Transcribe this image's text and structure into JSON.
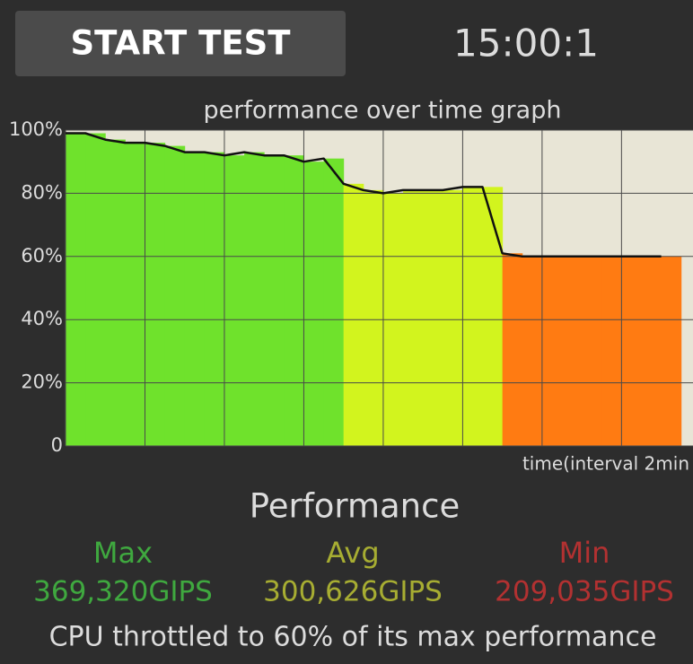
{
  "header": {
    "button": "START TEST",
    "timer": "15:00:1"
  },
  "chart_data": {
    "type": "line",
    "title": "performance over time graph",
    "x_label": "time(interval 2min",
    "x": [
      0,
      0.5,
      1,
      1.5,
      2,
      2.5,
      3,
      3.5,
      4,
      4.5,
      5,
      5.5,
      6,
      6.5,
      7,
      7.5,
      8,
      8.5,
      9,
      9.5,
      10,
      10.5,
      11,
      11.5,
      12,
      12.5,
      13,
      13.5,
      14,
      14.5,
      15
    ],
    "series": [
      {
        "color": "#111111",
        "values": [
          99,
          99,
          97,
          96,
          96,
          95,
          93,
          93,
          92,
          93,
          92,
          92,
          90,
          91,
          83,
          81,
          80,
          81,
          81,
          81,
          82,
          82,
          61,
          60,
          60,
          60,
          60,
          60,
          60,
          60,
          60
        ]
      }
    ],
    "xlim": [
      0,
      15.8
    ],
    "xticks": [
      0,
      2,
      4,
      6,
      8,
      10,
      12,
      14
    ],
    "ylim": [
      0,
      100
    ],
    "yticks": [
      0,
      {
        "value": 20,
        "label": "20%"
      },
      {
        "value": 40,
        "label": "40%"
      },
      {
        "value": 60,
        "label": "60%"
      },
      {
        "value": 80,
        "label": "80%"
      },
      {
        "value": 100,
        "label": "100%"
      }
    ],
    "grid": true
  },
  "summary": {
    "title": "Performance",
    "stats": [
      {
        "label": "Max",
        "value": "369,320GIPS"
      },
      {
        "label": "Avg",
        "value": "300,626GIPS"
      },
      {
        "label": "Min",
        "value": "209,035GIPS"
      }
    ],
    "message": "CPU throttled to 60% of its max performance"
  }
}
